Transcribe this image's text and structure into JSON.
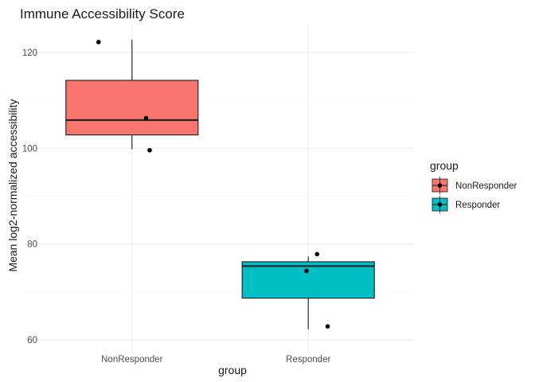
{
  "chart_data": {
    "type": "boxplot",
    "title": "Immune Accessibility Score",
    "xlabel": "group",
    "ylabel": "Mean log2-normalized accessibility",
    "categories": [
      "NonResponder",
      "Responder"
    ],
    "ylim": [
      57.5,
      125.5
    ],
    "yticks": [
      60,
      80,
      100,
      120
    ],
    "grid": true,
    "boxes": [
      {
        "group": "NonResponder",
        "min": 99.8,
        "q1": 102.8,
        "median": 105.9,
        "q3": 114.2,
        "max": 122.7,
        "fill": "#F8766D"
      },
      {
        "group": "Responder",
        "min": 62.2,
        "q1": 68.7,
        "median": 75.4,
        "q3": 76.3,
        "max": 77.4,
        "fill": "#00BFC4"
      }
    ],
    "points": [
      {
        "group": "NonResponder",
        "jitter": -0.19,
        "y": 122.2
      },
      {
        "group": "NonResponder",
        "jitter": 0.08,
        "y": 106.3
      },
      {
        "group": "NonResponder",
        "jitter": 0.1,
        "y": 99.6
      },
      {
        "group": "Responder",
        "jitter": -0.01,
        "y": 74.4
      },
      {
        "group": "Responder",
        "jitter": 0.05,
        "y": 77.9
      },
      {
        "group": "Responder",
        "jitter": 0.11,
        "y": 62.8
      }
    ],
    "legend": {
      "title": "group",
      "position": "right",
      "items": [
        {
          "label": "NonResponder",
          "color": "#F8766D"
        },
        {
          "label": "Responder",
          "color": "#00BFC4"
        }
      ]
    }
  }
}
